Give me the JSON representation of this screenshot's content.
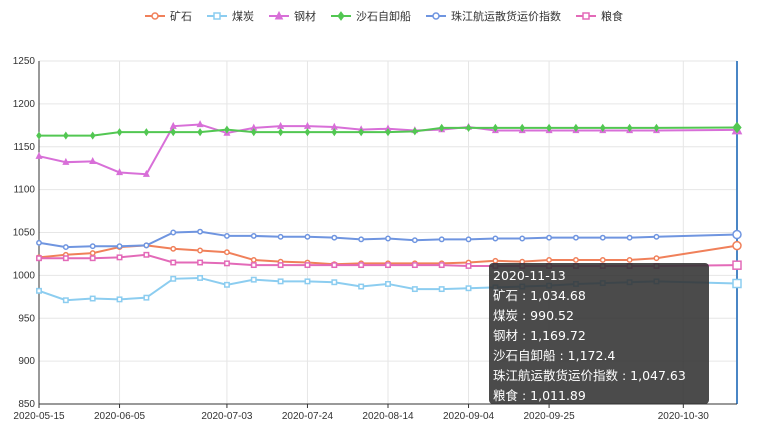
{
  "chart_data": {
    "type": "line",
    "x": [
      "2020-05-15",
      "2020-05-22",
      "2020-05-29",
      "2020-06-05",
      "2020-06-12",
      "2020-06-19",
      "2020-06-26",
      "2020-07-03",
      "2020-07-10",
      "2020-07-17",
      "2020-07-24",
      "2020-07-31",
      "2020-08-07",
      "2020-08-14",
      "2020-08-21",
      "2020-08-28",
      "2020-09-04",
      "2020-09-11",
      "2020-09-18",
      "2020-09-25",
      "2020-10-02",
      "2020-10-09",
      "2020-10-16",
      "2020-10-23",
      "2020-11-13"
    ],
    "xticks": [
      "2020-05-15",
      "2020-06-05",
      "2020-07-03",
      "2020-07-24",
      "2020-08-14",
      "2020-09-04",
      "2020-09-25",
      "2020-10-30"
    ],
    "ylim": [
      850,
      1250
    ],
    "yticks": [
      850,
      900,
      950,
      1000,
      1050,
      1100,
      1150,
      1200,
      1250
    ],
    "series": [
      {
        "name": "矿石",
        "color": "#f0805a",
        "marker": "circle",
        "values": [
          1021,
          1024,
          1026,
          1033,
          1035,
          1031,
          1029,
          1027,
          1018,
          1016,
          1015,
          1013,
          1014,
          1014,
          1014,
          1014,
          1015,
          1017,
          1016,
          1018,
          1018,
          1018,
          1018,
          1020,
          1034.68
        ]
      },
      {
        "name": "煤炭",
        "color": "#8ccdf0",
        "marker": "rect",
        "values": [
          982,
          971,
          973,
          972,
          974,
          996,
          997,
          989,
          995,
          993,
          993,
          992,
          987,
          990,
          984,
          984,
          985,
          986,
          987,
          988,
          990,
          991,
          992,
          993,
          990.52
        ]
      },
      {
        "name": "钢材",
        "color": "#d86fd8",
        "marker": "triangle",
        "values": [
          1139,
          1132,
          1133,
          1120,
          1118,
          1174,
          1176,
          1166,
          1172,
          1174,
          1174,
          1173,
          1170,
          1171,
          1169,
          1170,
          1173,
          1169,
          1169,
          1169,
          1169,
          1169,
          1169,
          1169,
          1169.72
        ]
      },
      {
        "name": "沙石自卸船",
        "color": "#52c752",
        "marker": "diamond",
        "values": [
          1163,
          1163,
          1163,
          1167,
          1167,
          1167,
          1167,
          1170,
          1167,
          1167,
          1167,
          1167,
          1167,
          1167,
          1168,
          1172,
          1172,
          1172,
          1172,
          1172,
          1172,
          1172,
          1172,
          1172,
          1172.4
        ]
      },
      {
        "name": "珠江航运散货运价指数",
        "color": "#6f95e0",
        "marker": "circle",
        "values": [
          1038,
          1033,
          1034,
          1034,
          1035,
          1050,
          1051,
          1046,
          1046,
          1045,
          1045,
          1044,
          1042,
          1043,
          1041,
          1042,
          1042,
          1043,
          1043,
          1044,
          1044,
          1044,
          1044,
          1045,
          1047.63
        ]
      },
      {
        "name": "粮食",
        "color": "#e36ab8",
        "marker": "rect",
        "values": [
          1020,
          1020,
          1020,
          1021,
          1024,
          1015,
          1015,
          1014,
          1012,
          1012,
          1012,
          1012,
          1012,
          1012,
          1012,
          1012,
          1011,
          1011,
          1011,
          1011,
          1011,
          1011,
          1011,
          1011,
          1011.89
        ]
      }
    ]
  },
  "tooltip": {
    "date": "2020-11-13",
    "lines": [
      "矿石 : 1,034.68",
      "煤炭 : 990.52",
      "钢材 : 1,169.72",
      "沙石自卸船 : 1,172.4",
      "珠江航运散货运价指数 : 1,047.63",
      "粮食 : 1,011.89"
    ]
  }
}
